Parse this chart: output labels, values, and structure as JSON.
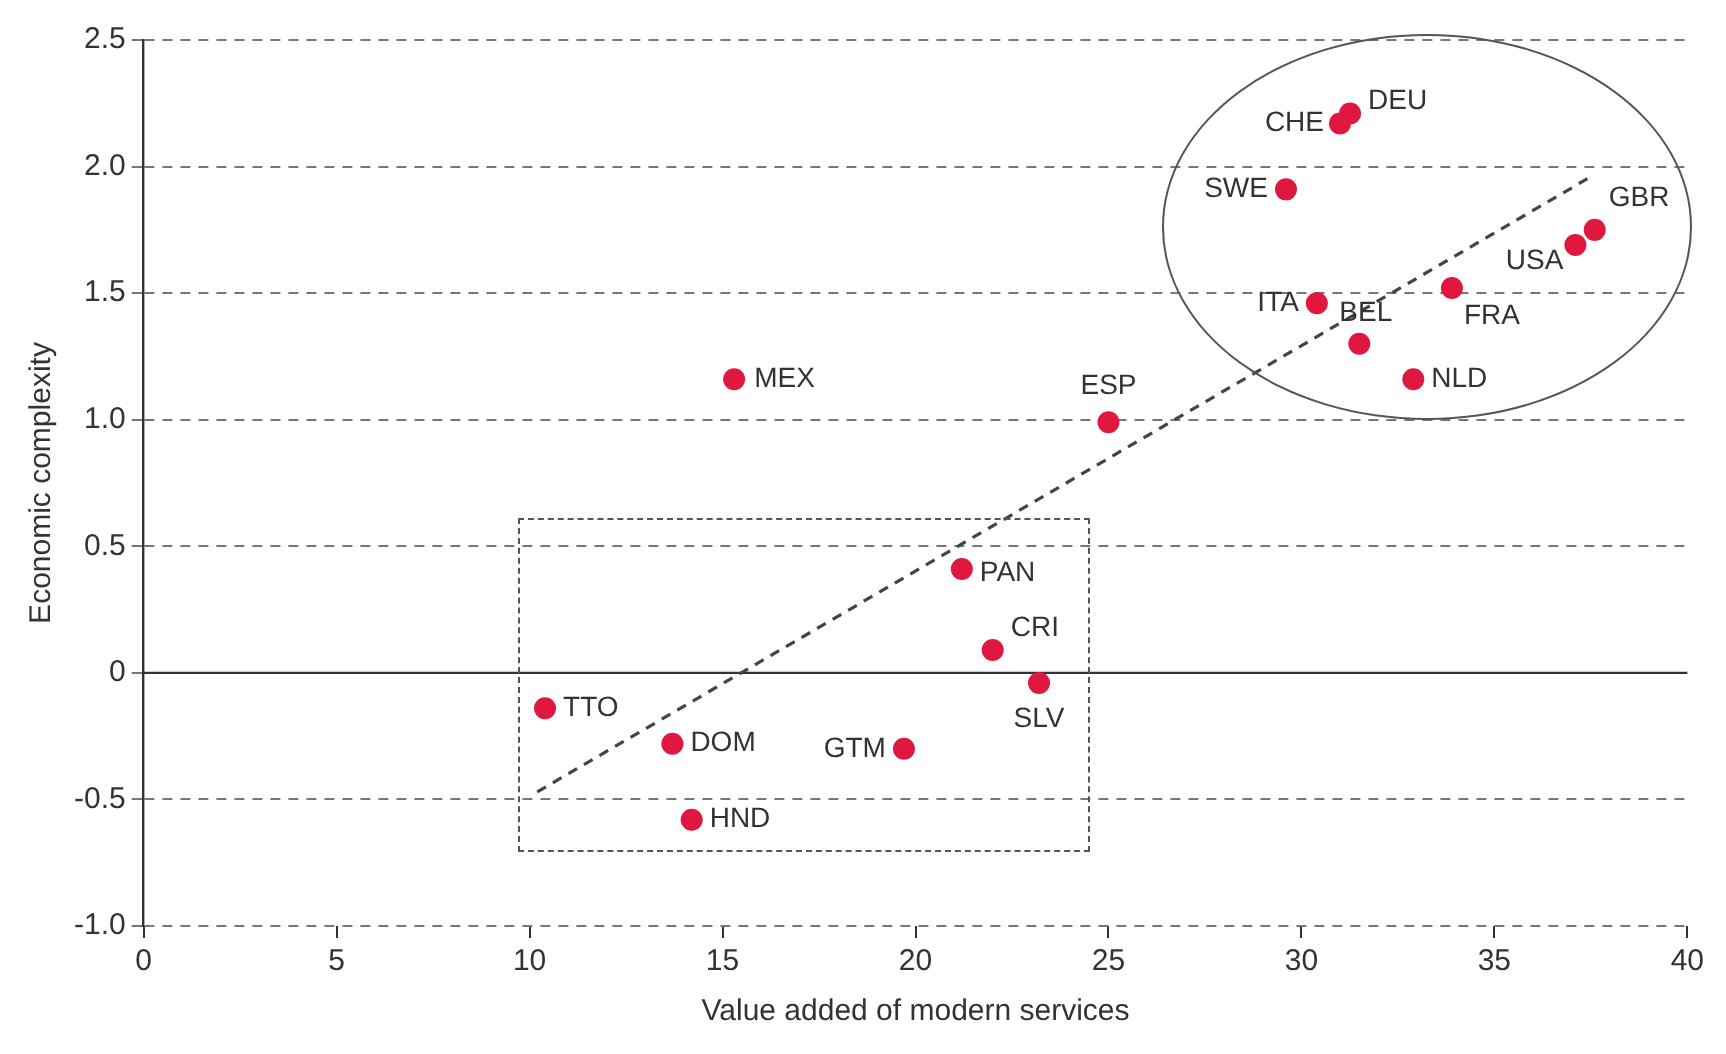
{
  "chart_data": {
    "type": "scatter",
    "xlabel": "Value added of modern services",
    "ylabel": "Economic complexity",
    "xlim": [
      0,
      40
    ],
    "xticks": [
      0,
      5,
      10,
      15,
      20,
      25,
      30,
      35,
      40
    ],
    "ylim": [
      -1,
      2.5
    ],
    "yticks": [
      {
        "value": -1,
        "label": "-1.0"
      },
      {
        "value": -0.5,
        "label": "-0.5"
      },
      0,
      {
        "value": 0.5,
        "label": "0.5"
      },
      {
        "value": 1,
        "label": "1.0"
      },
      {
        "value": 1.5,
        "label": "1.5"
      },
      {
        "value": 2,
        "label": "2.0"
      },
      {
        "value": 2.5,
        "label": "2.5"
      }
    ],
    "grid": "y",
    "legend": false,
    "series": [
      {
        "type": "scatter",
        "marker": "circle",
        "color": "#e0173f",
        "x": [
          31.26,
          31.0,
          29.6,
          37.6,
          37.1,
          30.4,
          33.9,
          31.5,
          32.9,
          15.3,
          25.0,
          21.2,
          22.0,
          23.2,
          10.4,
          13.7,
          19.7,
          14.2
        ],
        "values": [
          2.21,
          2.17,
          1.91,
          1.75,
          1.69,
          1.46,
          1.52,
          1.3,
          1.16,
          1.16,
          0.99,
          0.41,
          0.09,
          -0.04,
          -0.14,
          -0.28,
          -0.3,
          -0.58
        ]
      },
      {
        "type": "line",
        "marker": "none",
        "line_style": "dashed",
        "color": "#444444",
        "x": [
          10.2,
          37.5
        ],
        "values": [
          -0.47,
          1.96
        ]
      }
    ],
    "ref_lines": [
      {
        "axis": "y",
        "value": 0,
        "color": "#333333"
      }
    ],
    "annotations": [
      {
        "text": "DEU",
        "x": 31.26,
        "y": 2.21
      },
      {
        "text": "CHE",
        "x": 31.0,
        "y": 2.17
      },
      {
        "text": "SWE",
        "x": 29.6,
        "y": 1.91
      },
      {
        "text": "GBR",
        "x": 37.6,
        "y": 1.75
      },
      {
        "text": "USA",
        "x": 37.1,
        "y": 1.69
      },
      {
        "text": "ITA",
        "x": 30.4,
        "y": 1.46
      },
      {
        "text": "FRA",
        "x": 33.9,
        "y": 1.52
      },
      {
        "text": "BEL",
        "x": 31.5,
        "y": 1.3
      },
      {
        "text": "NLD",
        "x": 32.9,
        "y": 1.16
      },
      {
        "text": "MEX",
        "x": 15.3,
        "y": 1.16
      },
      {
        "text": "ESP",
        "x": 25.0,
        "y": 0.99
      },
      {
        "text": "PAN",
        "x": 21.2,
        "y": 0.41
      },
      {
        "text": "CRI",
        "x": 22.0,
        "y": 0.09
      },
      {
        "text": "SLV",
        "x": 23.2,
        "y": -0.04
      },
      {
        "text": "TTO",
        "x": 10.4,
        "y": -0.14
      },
      {
        "text": "DOM",
        "x": 13.7,
        "y": -0.28
      },
      {
        "text": "GTM",
        "x": 19.7,
        "y": -0.3
      },
      {
        "text": "HND",
        "x": 14.2,
        "y": -0.58
      }
    ]
  }
}
